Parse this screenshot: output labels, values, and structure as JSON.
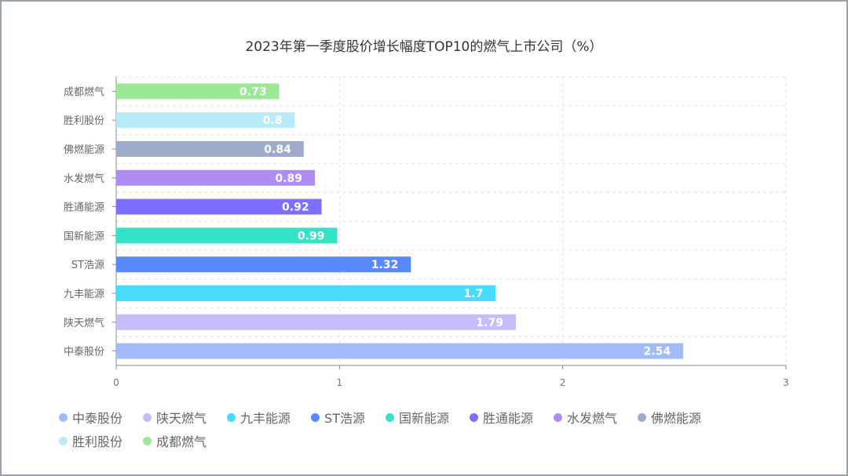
{
  "chart_data": {
    "type": "bar",
    "orientation": "horizontal",
    "title": "2023年第一季度股价增长幅度TOP10的燃气上市公司（%）",
    "categories": [
      "中泰股份",
      "陕天燃气",
      "九丰能源",
      "ST浩源",
      "国新能源",
      "胜通能源",
      "水发燃气",
      "佛燃能源",
      "胜利股份",
      "成都燃气"
    ],
    "values": [
      2.54,
      1.79,
      1.7,
      1.32,
      0.99,
      0.92,
      0.89,
      0.84,
      0.8,
      0.73
    ],
    "value_labels": [
      "2.54",
      "1.79",
      "1.7",
      "1.32",
      "0.99",
      "0.92",
      "0.89",
      "0.84",
      "0.8",
      "0.73"
    ],
    "colors": [
      "#a3bbfb",
      "#c5befa",
      "#48dbfb",
      "#5889fd",
      "#33e3c6",
      "#7b6ffb",
      "#ae8cf3",
      "#9eacc9",
      "#b7ebf8",
      "#9ce897"
    ],
    "xlim": [
      0,
      3
    ],
    "xticks": [
      "0",
      "1",
      "2",
      "3"
    ],
    "grid": true,
    "legend_position": "bottom",
    "xlabel": "",
    "ylabel": ""
  }
}
